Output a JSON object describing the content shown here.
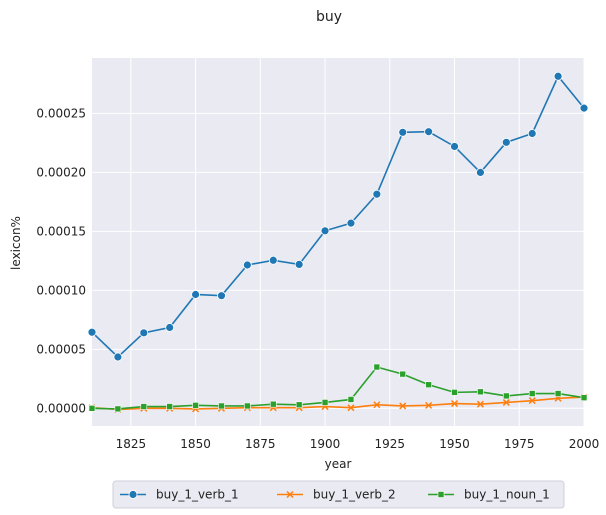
{
  "chart_data": {
    "type": "line",
    "title": "buy",
    "xlabel": "year",
    "ylabel": "lexicon%",
    "xlim": [
      1810,
      2000
    ],
    "ylim": [
      -1.5e-05,
      0.000297
    ],
    "grid": true,
    "legend_position": "bottom-center",
    "x_ticks": [
      1825,
      1850,
      1875,
      1900,
      1925,
      1950,
      1975,
      2000
    ],
    "x_tick_labels": [
      "1825",
      "1850",
      "1875",
      "1900",
      "1925",
      "1950",
      "1975",
      "2000"
    ],
    "y_ticks": [
      0,
      5e-05,
      0.0001,
      0.00015,
      0.0002,
      0.00025
    ],
    "y_tick_labels": [
      "0.00000",
      "0.00005",
      "0.00010",
      "0.00015",
      "0.00020",
      "0.00025"
    ],
    "x": [
      1810,
      1820,
      1830,
      1840,
      1850,
      1860,
      1870,
      1880,
      1890,
      1900,
      1910,
      1920,
      1930,
      1940,
      1950,
      1960,
      1970,
      1980,
      1990,
      2000
    ],
    "series": [
      {
        "name": "buy_1_verb_1",
        "color": "#1f77b4",
        "marker": "circle",
        "values": [
          6.45e-05,
          4.35e-05,
          6.4e-05,
          6.85e-05,
          9.65e-05,
          9.55e-05,
          0.0001215,
          0.0001255,
          0.000122,
          0.0001505,
          0.000157,
          0.0001815,
          0.000234,
          0.0002345,
          0.000222,
          0.0002,
          0.0002255,
          0.000233,
          0.0002815,
          0.0002545
        ]
      },
      {
        "name": "buy_1_verb_2",
        "color": "#ff7f0e",
        "marker": "x",
        "values": [
          5e-07,
          -1e-06,
          0.0,
          0.0,
          -5e-07,
          0.0,
          5e-07,
          5e-07,
          5e-07,
          1.5e-06,
          5e-07,
          3e-06,
          2e-06,
          2.5e-06,
          4e-06,
          3.5e-06,
          5e-06,
          6.5e-06,
          8.5e-06,
          9.5e-06
        ]
      },
      {
        "name": "buy_1_noun_1",
        "color": "#2ca02c",
        "marker": "square",
        "values": [
          0.0,
          -5e-07,
          1.5e-06,
          1.5e-06,
          2.5e-06,
          2e-06,
          2e-06,
          3.5e-06,
          3e-06,
          5e-06,
          7.5e-06,
          3.5e-05,
          2.9e-05,
          2e-05,
          1.35e-05,
          1.4e-05,
          1.05e-05,
          1.25e-05,
          1.25e-05,
          9e-06
        ]
      }
    ],
    "colors": {
      "plot_background": "#eaeaf2",
      "grid": "#ffffff"
    }
  }
}
